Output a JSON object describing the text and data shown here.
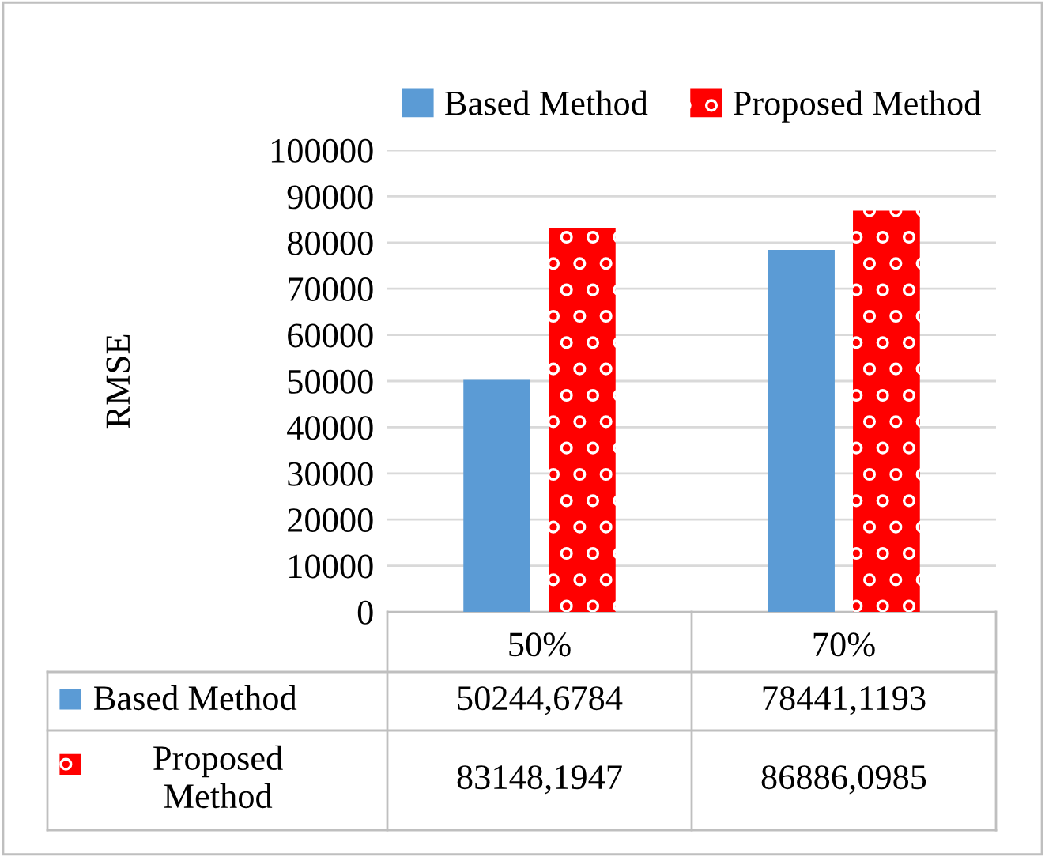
{
  "chart_data": {
    "type": "bar",
    "ylabel": "RMSE",
    "categories": [
      "50%",
      "70%"
    ],
    "series": [
      {
        "name": "Based Method",
        "color": "#5b9bd5",
        "values": [
          50244.6784,
          78441.1193
        ],
        "value_labels": [
          "50244,6784",
          "78441,1193"
        ]
      },
      {
        "name": "Proposed Method",
        "color": "#ff0000",
        "values": [
          83148.1947,
          86886.0985
        ],
        "value_labels": [
          "83148,1947",
          "86886,0985"
        ]
      }
    ],
    "ylim": [
      0,
      100000
    ],
    "yticks": [
      0,
      10000,
      20000,
      30000,
      40000,
      50000,
      60000,
      70000,
      80000,
      90000,
      100000
    ],
    "grid": "y",
    "legend": "top"
  }
}
